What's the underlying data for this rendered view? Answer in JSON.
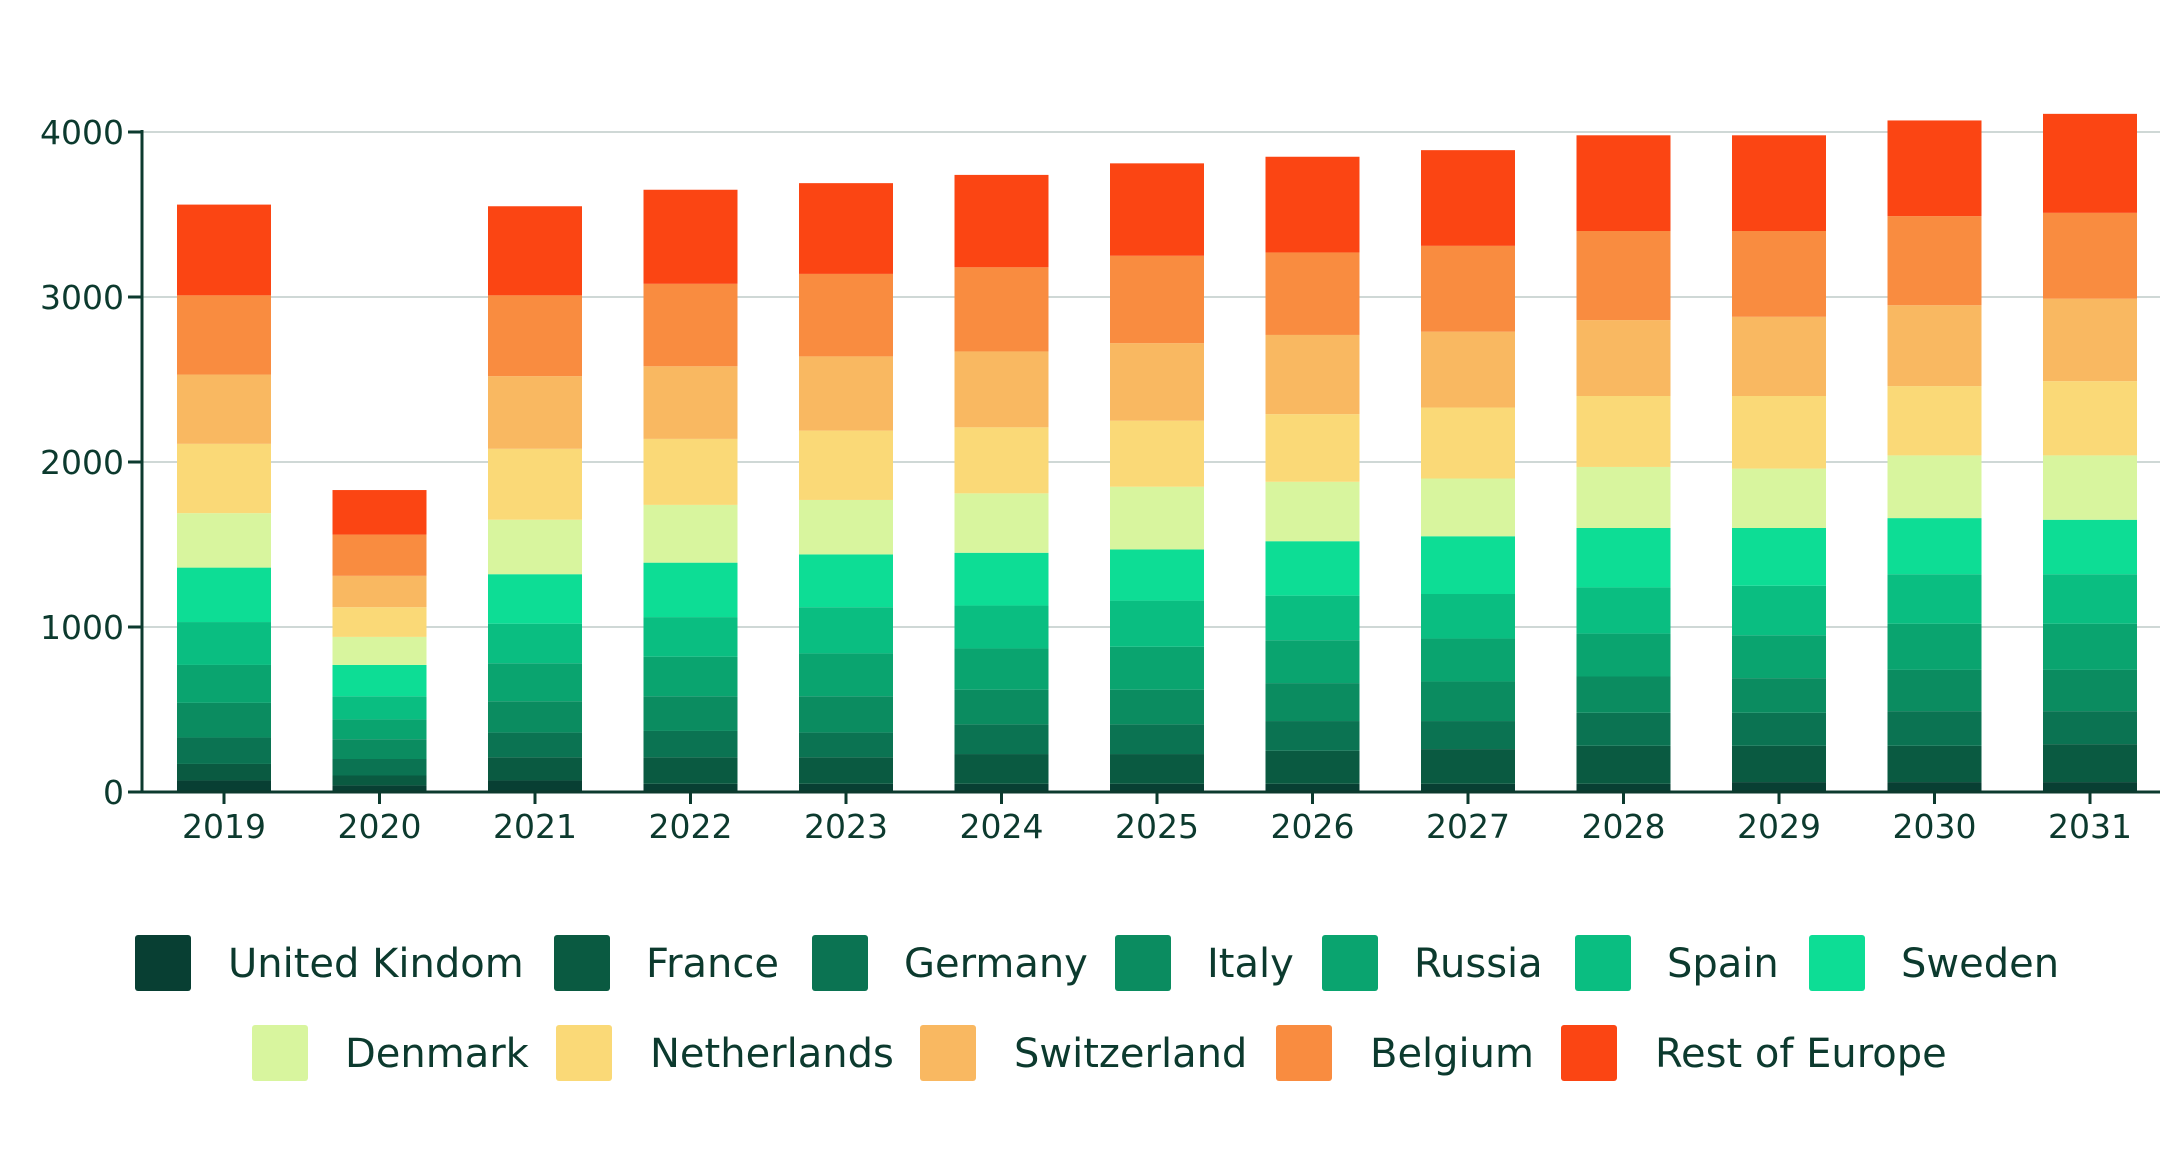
{
  "chart_data": {
    "type": "bar",
    "stacked": true,
    "categories": [
      "2019",
      "2020",
      "2021",
      "2022",
      "2023",
      "2024",
      "2025",
      "2026",
      "2027",
      "2028",
      "2029",
      "2030",
      "2031"
    ],
    "ylim": [
      0,
      4000
    ],
    "yticks": [
      0,
      1000,
      2000,
      3000,
      4000
    ],
    "grid": true,
    "legend_position": "bottom",
    "series": [
      {
        "name": "United Kindom",
        "color": "#083f33",
        "values": [
          70,
          40,
          70,
          50,
          50,
          50,
          50,
          50,
          50,
          50,
          60,
          60,
          60
        ]
      },
      {
        "name": "France",
        "color": "#0a5a41",
        "values": [
          100,
          60,
          140,
          160,
          160,
          180,
          180,
          200,
          210,
          230,
          220,
          220,
          230
        ]
      },
      {
        "name": "Germany",
        "color": "#0b7352",
        "values": [
          160,
          100,
          150,
          160,
          150,
          180,
          180,
          180,
          170,
          200,
          200,
          210,
          200
        ]
      },
      {
        "name": "Italy",
        "color": "#0b8c60",
        "values": [
          210,
          120,
          190,
          210,
          220,
          210,
          210,
          230,
          240,
          220,
          210,
          250,
          250
        ]
      },
      {
        "name": "Russia",
        "color": "#0aa46f",
        "values": [
          230,
          120,
          230,
          240,
          260,
          250,
          260,
          260,
          260,
          260,
          260,
          280,
          280
        ]
      },
      {
        "name": "Spain",
        "color": "#0abe81",
        "values": [
          260,
          140,
          240,
          240,
          280,
          260,
          280,
          270,
          270,
          280,
          300,
          300,
          300
        ]
      },
      {
        "name": "Sweden",
        "color": "#0ddd95",
        "values": [
          330,
          190,
          300,
          330,
          320,
          320,
          310,
          330,
          350,
          360,
          350,
          340,
          330
        ]
      },
      {
        "name": "Denmark",
        "color": "#d8f59e",
        "values": [
          330,
          170,
          330,
          350,
          330,
          360,
          380,
          360,
          350,
          370,
          360,
          380,
          390
        ]
      },
      {
        "name": "Netherlands",
        "color": "#fad977",
        "values": [
          420,
          180,
          430,
          400,
          420,
          400,
          400,
          410,
          430,
          430,
          440,
          420,
          450
        ]
      },
      {
        "name": "Switzerland",
        "color": "#f9b861",
        "values": [
          420,
          190,
          440,
          440,
          450,
          460,
          470,
          480,
          460,
          460,
          480,
          490,
          500
        ]
      },
      {
        "name": "Belgium",
        "color": "#f98c40",
        "values": [
          480,
          250,
          490,
          500,
          500,
          510,
          530,
          500,
          520,
          540,
          520,
          540,
          520
        ]
      },
      {
        "name": "Rest of Europe",
        "color": "#fb4513",
        "values": [
          550,
          270,
          540,
          570,
          550,
          560,
          560,
          580,
          580,
          580,
          580,
          580,
          600
        ]
      }
    ]
  }
}
